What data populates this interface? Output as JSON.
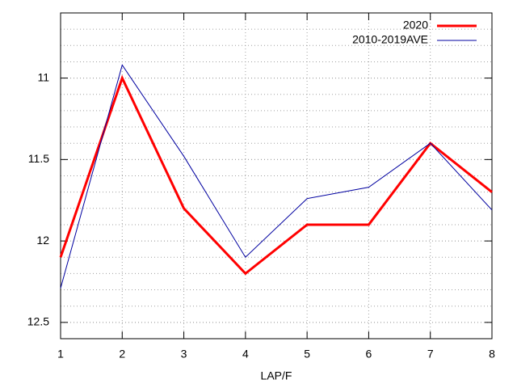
{
  "chart_data": {
    "type": "line",
    "x": [
      1,
      2,
      3,
      4,
      5,
      6,
      7,
      8
    ],
    "series": [
      {
        "name": "2020",
        "color": "#ff0000",
        "values": [
          12.1,
          11.0,
          11.8,
          12.2,
          11.9,
          11.9,
          11.4,
          11.7
        ]
      },
      {
        "name": "2010-2019AVE",
        "color": "#0000a0",
        "values": [
          12.29,
          10.92,
          11.48,
          12.1,
          11.74,
          11.67,
          11.4,
          11.81
        ]
      }
    ],
    "xlabel": "LAP/F",
    "xlim": [
      1,
      8
    ],
    "xticks": [
      1,
      2,
      3,
      4,
      5,
      6,
      7,
      8
    ],
    "ylim": [
      10.6,
      12.6
    ],
    "yticks": [
      11,
      11.5,
      12,
      12.5
    ],
    "y_reversed": true,
    "grid": true,
    "y_minor_grid": 5,
    "legend": "top-right"
  }
}
